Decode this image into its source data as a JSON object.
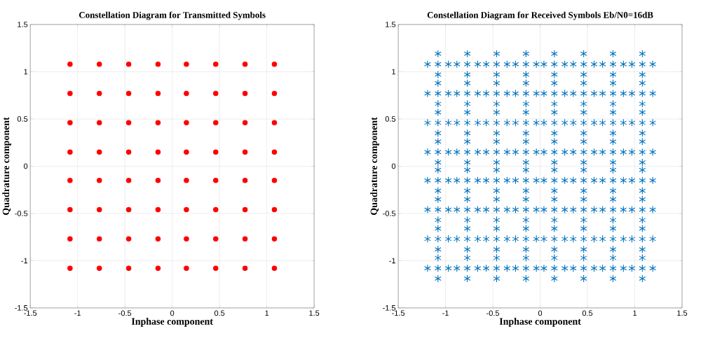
{
  "chart_data": [
    {
      "type": "scatter",
      "title": "Constellation Diagram for Transmitted Symbols",
      "xlabel": "Inphase component",
      "ylabel": "Quadrature component",
      "xlim": [
        -1.5,
        1.5
      ],
      "ylim": [
        -1.5,
        1.5
      ],
      "xticks": [
        -1.5,
        -1,
        -0.5,
        0,
        0.5,
        1,
        1.5
      ],
      "yticks": [
        -1.5,
        -1,
        -0.5,
        0,
        0.5,
        1,
        1.5
      ],
      "grid": true,
      "marker": "circle",
      "series": [
        {
          "color": "#ff0000",
          "x": [
            -1.08,
            -0.77,
            -0.46,
            -0.15,
            0.15,
            0.46,
            0.77,
            1.08,
            -1.08,
            -0.77,
            -0.46,
            -0.15,
            0.15,
            0.46,
            0.77,
            1.08,
            -1.08,
            -0.77,
            -0.46,
            -0.15,
            0.15,
            0.46,
            0.77,
            1.08,
            -1.08,
            -0.77,
            -0.46,
            -0.15,
            0.15,
            0.46,
            0.77,
            1.08,
            -1.08,
            -0.77,
            -0.46,
            -0.15,
            0.15,
            0.46,
            0.77,
            1.08,
            -1.08,
            -0.77,
            -0.46,
            -0.15,
            0.15,
            0.46,
            0.77,
            1.08,
            -1.08,
            -0.77,
            -0.46,
            -0.15,
            0.15,
            0.46,
            0.77,
            1.08,
            -1.08,
            -0.77,
            -0.46,
            -0.15,
            0.15,
            0.46,
            0.77,
            1.08
          ],
          "values": [
            1.08,
            1.08,
            1.08,
            1.08,
            1.08,
            1.08,
            1.08,
            1.08,
            0.77,
            0.77,
            0.77,
            0.77,
            0.77,
            0.77,
            0.77,
            0.77,
            0.46,
            0.46,
            0.46,
            0.46,
            0.46,
            0.46,
            0.46,
            0.46,
            0.15,
            0.15,
            0.15,
            0.15,
            0.15,
            0.15,
            0.15,
            0.15,
            -0.15,
            -0.15,
            -0.15,
            -0.15,
            -0.15,
            -0.15,
            -0.15,
            -0.15,
            -0.46,
            -0.46,
            -0.46,
            -0.46,
            -0.46,
            -0.46,
            -0.46,
            -0.46,
            -0.77,
            -0.77,
            -0.77,
            -0.77,
            -0.77,
            -0.77,
            -0.77,
            -0.77,
            -1.08,
            -1.08,
            -1.08,
            -1.08,
            -1.08,
            -1.08,
            -1.08,
            -1.08
          ]
        }
      ]
    },
    {
      "type": "scatter",
      "title": "Constellation Diagram for Received Symbols Eb/N0=16dB",
      "xlabel": "Inphase component",
      "ylabel": "Quadrature component",
      "xlim": [
        -1.5,
        1.5
      ],
      "ylim": [
        -1.5,
        1.5
      ],
      "xticks": [
        -1.5,
        -1,
        -0.5,
        0,
        0.5,
        1,
        1.5
      ],
      "yticks": [
        -1.5,
        -1,
        -0.5,
        0,
        0.5,
        1,
        1.5
      ],
      "grid": true,
      "marker": "cross",
      "series": [
        {
          "color": "#0072bd",
          "x": [
            -1.08,
            -1.19,
            -0.97,
            -1.08,
            -1.08,
            -0.77,
            -0.88,
            -0.66,
            -0.77,
            -0.77,
            -0.46,
            -0.57,
            -0.35,
            -0.46,
            -0.46,
            -0.15,
            -0.26,
            -0.04,
            -0.15,
            -0.15,
            0.15,
            0.04,
            0.26,
            0.15,
            0.15,
            0.46,
            0.35,
            0.57,
            0.46,
            0.46,
            0.77,
            0.66,
            0.88,
            0.77,
            0.77,
            1.08,
            0.97,
            1.19,
            1.08,
            1.08
          ],
          "values": [
            1.08,
            1.08,
            1.08,
            1.19,
            0.97,
            1.08,
            1.08,
            1.08,
            1.19,
            0.97,
            1.08,
            1.08,
            1.08,
            1.19,
            0.97,
            1.08,
            1.08,
            1.08,
            1.19,
            0.97,
            1.08,
            1.08,
            1.08,
            1.19,
            0.97,
            1.08,
            1.08,
            1.08,
            1.19,
            0.97,
            1.08,
            1.08,
            1.08,
            1.19,
            0.97,
            1.08,
            1.08,
            1.08,
            1.19,
            0.97
          ]
        },
        {
          "color": "#0072bd",
          "x": [
            -1.08,
            -1.19,
            -0.97,
            -1.08,
            -1.08,
            -0.77,
            -0.88,
            -0.66,
            -0.77,
            -0.77,
            -0.46,
            -0.57,
            -0.35,
            -0.46,
            -0.46,
            -0.15,
            -0.26,
            -0.04,
            -0.15,
            -0.15,
            0.15,
            0.04,
            0.26,
            0.15,
            0.15,
            0.46,
            0.35,
            0.57,
            0.46,
            0.46,
            0.77,
            0.66,
            0.88,
            0.77,
            0.77,
            1.08,
            0.97,
            1.19,
            1.08,
            1.08
          ],
          "values": [
            0.77,
            0.77,
            0.77,
            0.88,
            0.66,
            0.77,
            0.77,
            0.77,
            0.88,
            0.66,
            0.77,
            0.77,
            0.77,
            0.88,
            0.66,
            0.77,
            0.77,
            0.77,
            0.88,
            0.66,
            0.77,
            0.77,
            0.77,
            0.88,
            0.66,
            0.77,
            0.77,
            0.77,
            0.88,
            0.66,
            0.77,
            0.77,
            0.77,
            0.88,
            0.66,
            0.77,
            0.77,
            0.77,
            0.88,
            0.66
          ]
        },
        {
          "color": "#0072bd",
          "x": [
            -1.08,
            -1.19,
            -0.97,
            -1.08,
            -1.08,
            -0.77,
            -0.88,
            -0.66,
            -0.77,
            -0.77,
            -0.46,
            -0.57,
            -0.35,
            -0.46,
            -0.46,
            -0.15,
            -0.26,
            -0.04,
            -0.15,
            -0.15,
            0.15,
            0.04,
            0.26,
            0.15,
            0.15,
            0.46,
            0.35,
            0.57,
            0.46,
            0.46,
            0.77,
            0.66,
            0.88,
            0.77,
            0.77,
            1.08,
            0.97,
            1.19,
            1.08,
            1.08
          ],
          "values": [
            0.46,
            0.46,
            0.46,
            0.57,
            0.35,
            0.46,
            0.46,
            0.46,
            0.57,
            0.35,
            0.46,
            0.46,
            0.46,
            0.57,
            0.35,
            0.46,
            0.46,
            0.46,
            0.57,
            0.35,
            0.46,
            0.46,
            0.46,
            0.57,
            0.35,
            0.46,
            0.46,
            0.46,
            0.57,
            0.35,
            0.46,
            0.46,
            0.46,
            0.57,
            0.35,
            0.46,
            0.46,
            0.46,
            0.57,
            0.35
          ]
        },
        {
          "color": "#0072bd",
          "x": [
            -1.08,
            -1.19,
            -0.97,
            -1.08,
            -1.08,
            -0.77,
            -0.88,
            -0.66,
            -0.77,
            -0.77,
            -0.46,
            -0.57,
            -0.35,
            -0.46,
            -0.46,
            -0.15,
            -0.26,
            -0.04,
            -0.15,
            -0.15,
            0.15,
            0.04,
            0.26,
            0.15,
            0.15,
            0.46,
            0.35,
            0.57,
            0.46,
            0.46,
            0.77,
            0.66,
            0.88,
            0.77,
            0.77,
            1.08,
            0.97,
            1.19,
            1.08,
            1.08
          ],
          "values": [
            0.15,
            0.15,
            0.15,
            0.26,
            0.04,
            0.15,
            0.15,
            0.15,
            0.26,
            0.04,
            0.15,
            0.15,
            0.15,
            0.26,
            0.04,
            0.15,
            0.15,
            0.15,
            0.26,
            0.04,
            0.15,
            0.15,
            0.15,
            0.26,
            0.04,
            0.15,
            0.15,
            0.15,
            0.26,
            0.04,
            0.15,
            0.15,
            0.15,
            0.26,
            0.04,
            0.15,
            0.15,
            0.15,
            0.26,
            0.04
          ]
        },
        {
          "color": "#0072bd",
          "x": [
            -1.08,
            -1.19,
            -0.97,
            -1.08,
            -1.08,
            -0.77,
            -0.88,
            -0.66,
            -0.77,
            -0.77,
            -0.46,
            -0.57,
            -0.35,
            -0.46,
            -0.46,
            -0.15,
            -0.26,
            -0.04,
            -0.15,
            -0.15,
            0.15,
            0.04,
            0.26,
            0.15,
            0.15,
            0.46,
            0.35,
            0.57,
            0.46,
            0.46,
            0.77,
            0.66,
            0.88,
            0.77,
            0.77,
            1.08,
            0.97,
            1.19,
            1.08,
            1.08
          ],
          "values": [
            -0.15,
            -0.15,
            -0.15,
            -0.04,
            -0.26,
            -0.15,
            -0.15,
            -0.15,
            -0.04,
            -0.26,
            -0.15,
            -0.15,
            -0.15,
            -0.04,
            -0.26,
            -0.15,
            -0.15,
            -0.15,
            -0.04,
            -0.26,
            -0.15,
            -0.15,
            -0.15,
            -0.04,
            -0.26,
            -0.15,
            -0.15,
            -0.15,
            -0.04,
            -0.26,
            -0.15,
            -0.15,
            -0.15,
            -0.04,
            -0.26,
            -0.15,
            -0.15,
            -0.15,
            -0.04,
            -0.26
          ]
        },
        {
          "color": "#0072bd",
          "x": [
            -1.08,
            -1.19,
            -0.97,
            -1.08,
            -1.08,
            -0.77,
            -0.88,
            -0.66,
            -0.77,
            -0.77,
            -0.46,
            -0.57,
            -0.35,
            -0.46,
            -0.46,
            -0.15,
            -0.26,
            -0.04,
            -0.15,
            -0.15,
            0.15,
            0.04,
            0.26,
            0.15,
            0.15,
            0.46,
            0.35,
            0.57,
            0.46,
            0.46,
            0.77,
            0.66,
            0.88,
            0.77,
            0.77,
            1.08,
            0.97,
            1.19,
            1.08,
            1.08
          ],
          "values": [
            -0.46,
            -0.46,
            -0.46,
            -0.35,
            -0.57,
            -0.46,
            -0.46,
            -0.46,
            -0.35,
            -0.57,
            -0.46,
            -0.46,
            -0.46,
            -0.35,
            -0.57,
            -0.46,
            -0.46,
            -0.46,
            -0.35,
            -0.57,
            -0.46,
            -0.46,
            -0.46,
            -0.35,
            -0.57,
            -0.46,
            -0.46,
            -0.46,
            -0.35,
            -0.57,
            -0.46,
            -0.46,
            -0.46,
            -0.35,
            -0.57,
            -0.46,
            -0.46,
            -0.46,
            -0.35,
            -0.57
          ]
        },
        {
          "color": "#0072bd",
          "x": [
            -1.08,
            -1.19,
            -0.97,
            -1.08,
            -1.08,
            -0.77,
            -0.88,
            -0.66,
            -0.77,
            -0.77,
            -0.46,
            -0.57,
            -0.35,
            -0.46,
            -0.46,
            -0.15,
            -0.26,
            -0.04,
            -0.15,
            -0.15,
            0.15,
            0.04,
            0.26,
            0.15,
            0.15,
            0.46,
            0.35,
            0.57,
            0.46,
            0.46,
            0.77,
            0.66,
            0.88,
            0.77,
            0.77,
            1.08,
            0.97,
            1.19,
            1.08,
            1.08
          ],
          "values": [
            -0.77,
            -0.77,
            -0.77,
            -0.66,
            -0.88,
            -0.77,
            -0.77,
            -0.77,
            -0.66,
            -0.88,
            -0.77,
            -0.77,
            -0.77,
            -0.66,
            -0.88,
            -0.77,
            -0.77,
            -0.77,
            -0.66,
            -0.88,
            -0.77,
            -0.77,
            -0.77,
            -0.66,
            -0.88,
            -0.77,
            -0.77,
            -0.77,
            -0.66,
            -0.88,
            -0.77,
            -0.77,
            -0.77,
            -0.66,
            -0.88,
            -0.77,
            -0.77,
            -0.77,
            -0.66,
            -0.88
          ]
        },
        {
          "color": "#0072bd",
          "x": [
            -1.08,
            -1.19,
            -0.97,
            -1.08,
            -1.08,
            -0.77,
            -0.88,
            -0.66,
            -0.77,
            -0.77,
            -0.46,
            -0.57,
            -0.35,
            -0.46,
            -0.46,
            -0.15,
            -0.26,
            -0.04,
            -0.15,
            -0.15,
            0.15,
            0.04,
            0.26,
            0.15,
            0.15,
            0.46,
            0.35,
            0.57,
            0.46,
            0.46,
            0.77,
            0.66,
            0.88,
            0.77,
            0.77,
            1.08,
            0.97,
            1.19,
            1.08,
            1.08
          ],
          "values": [
            -1.08,
            -1.08,
            -1.08,
            -0.97,
            -1.19,
            -1.08,
            -1.08,
            -1.08,
            -0.97,
            -1.19,
            -1.08,
            -1.08,
            -1.08,
            -0.97,
            -1.19,
            -1.08,
            -1.08,
            -1.08,
            -0.97,
            -1.19,
            -1.08,
            -1.08,
            -1.08,
            -0.97,
            -1.19,
            -1.08,
            -1.08,
            -1.08,
            -0.97,
            -1.19,
            -1.08,
            -1.08,
            -1.08,
            -0.97,
            -1.19,
            -1.08,
            -1.08,
            -1.08,
            -0.97,
            -1.19
          ]
        }
      ]
    }
  ]
}
